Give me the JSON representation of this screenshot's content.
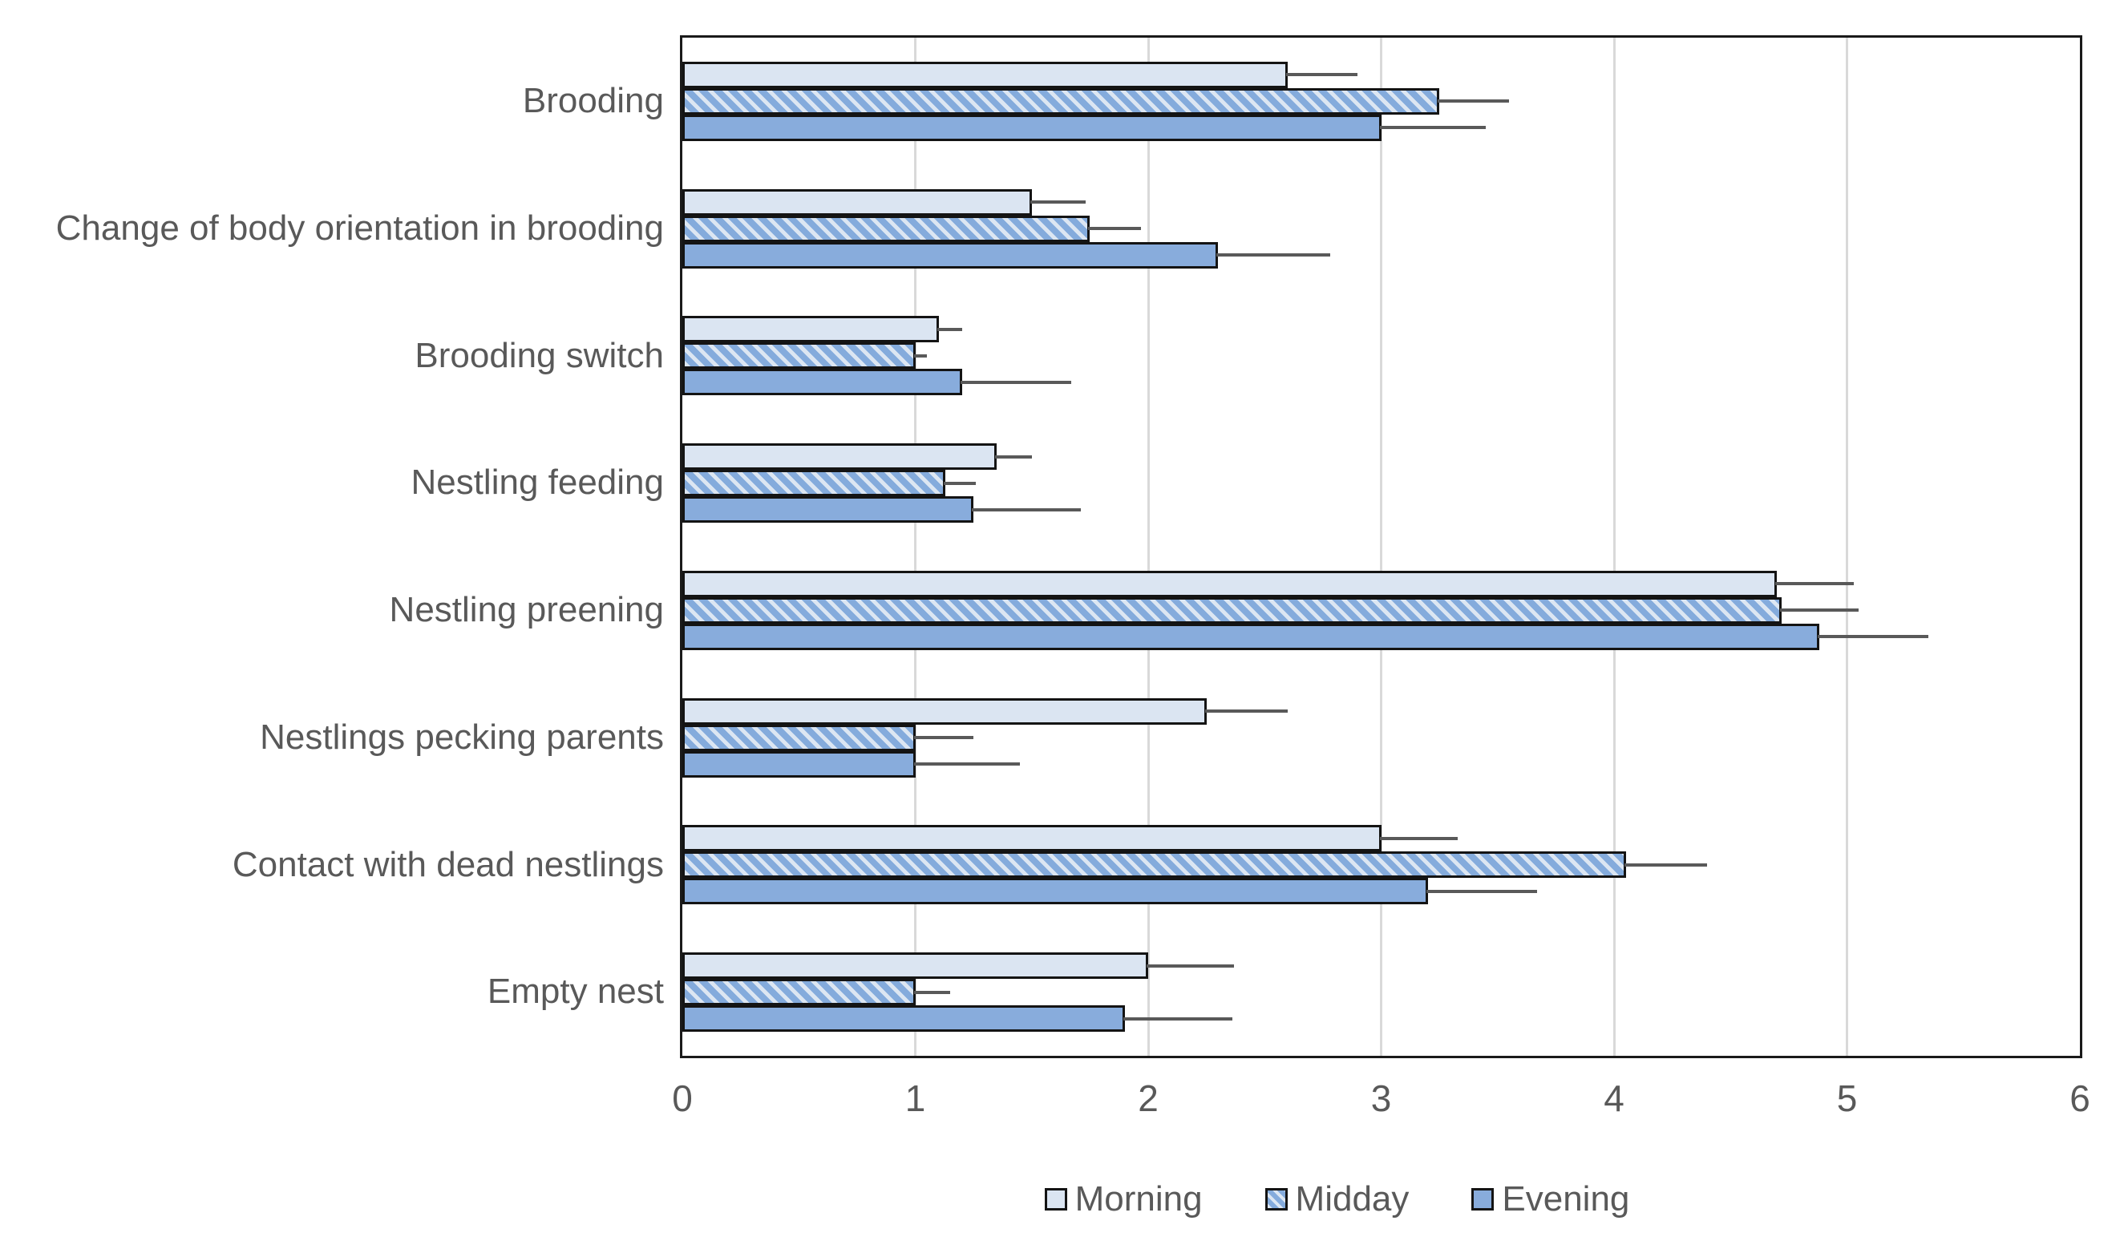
{
  "chart_data": {
    "type": "bar",
    "orientation": "horizontal",
    "title": "",
    "xlabel": "",
    "ylabel": "",
    "xlim": [
      0,
      6
    ],
    "xticks": [
      "0",
      "1",
      "2",
      "3",
      "4",
      "5",
      "6"
    ],
    "grid": true,
    "legend_position": "bottom",
    "categories": [
      "Brooding",
      "Change of body orientation in brooding",
      "Brooding switch",
      "Nestling feeding",
      "Nestling preening",
      "Nestlings pecking parents",
      "Contact with dead nestlings",
      "Empty nest"
    ],
    "series": [
      {
        "name": "Morning",
        "pattern": "solid",
        "fill": "#dbe5f2",
        "values": [
          2.6,
          1.5,
          1.1,
          1.35,
          4.7,
          2.25,
          3.0,
          2.0
        ],
        "errors": [
          0.3,
          0.23,
          0.1,
          0.15,
          0.33,
          0.35,
          0.33,
          0.37
        ]
      },
      {
        "name": "Midday",
        "pattern": "diagonal-hatch",
        "fill": "#84abdc",
        "hatch_light": "#dce6f2",
        "values": [
          3.25,
          1.75,
          1.0,
          1.13,
          4.72,
          1.0,
          4.05,
          1.0
        ],
        "errors": [
          0.3,
          0.22,
          0.05,
          0.13,
          0.33,
          0.25,
          0.35,
          0.15
        ]
      },
      {
        "name": "Evening",
        "pattern": "solid",
        "fill": "#88acdc",
        "values": [
          3.0,
          2.3,
          1.2,
          1.25,
          4.88,
          1.0,
          3.2,
          1.9
        ],
        "errors": [
          0.45,
          0.48,
          0.47,
          0.46,
          0.47,
          0.45,
          0.47,
          0.46
        ]
      }
    ],
    "colors": {
      "bar_border": "#141414",
      "error_bar": "#595959",
      "gridline": "#d9d9d9",
      "plot_border": "#1a1a1a",
      "axis_text": "#595959"
    }
  }
}
